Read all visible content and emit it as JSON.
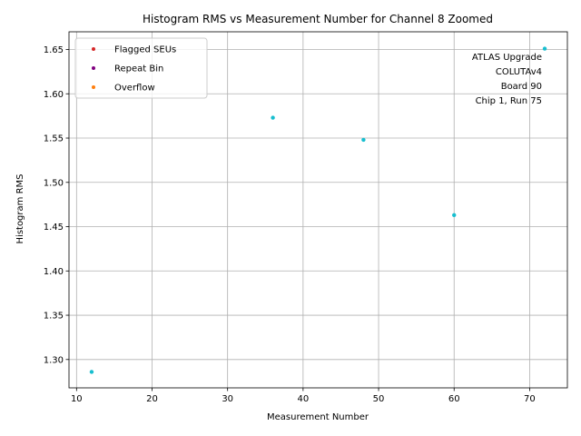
{
  "chart_data": {
    "type": "scatter",
    "title": "Histogram RMS vs Measurement Number for Channel 8 Zoomed",
    "xlabel": "Measurement Number",
    "ylabel": "Histogram RMS",
    "xlim": [
      9,
      75
    ],
    "ylim": [
      1.268,
      1.67
    ],
    "xticks": [
      10,
      20,
      30,
      40,
      50,
      60,
      70
    ],
    "yticks": [
      1.3,
      1.35,
      1.4,
      1.45,
      1.5,
      1.55,
      1.6,
      1.65
    ],
    "xtick_labels": [
      "10",
      "20",
      "30",
      "40",
      "50",
      "60",
      "70"
    ],
    "ytick_labels": [
      "1.30",
      "1.35",
      "1.40",
      "1.45",
      "1.50",
      "1.55",
      "1.60",
      "1.65"
    ],
    "grid": true,
    "legend_position": "top-left",
    "series": [
      {
        "name": "",
        "color": "#17becf",
        "x": [
          12,
          36,
          48,
          60,
          72
        ],
        "y": [
          1.286,
          1.573,
          1.548,
          1.463,
          1.651
        ]
      },
      {
        "name": "Flagged SEUs",
        "color": "#d62728",
        "x": [],
        "y": []
      },
      {
        "name": "Repeat Bin",
        "color": "#800080",
        "x": [],
        "y": []
      },
      {
        "name": "Overflow",
        "color": "#ff7f0e",
        "x": [],
        "y": []
      }
    ],
    "legend": [
      {
        "label": "Flagged SEUs",
        "color": "#d62728"
      },
      {
        "label": "Repeat Bin",
        "color": "#800080"
      },
      {
        "label": "Overflow",
        "color": "#ff7f0e"
      }
    ],
    "annotation_lines": [
      "ATLAS Upgrade",
      "COLUTAv4",
      "Board 90",
      "Chip 1, Run 75"
    ]
  }
}
